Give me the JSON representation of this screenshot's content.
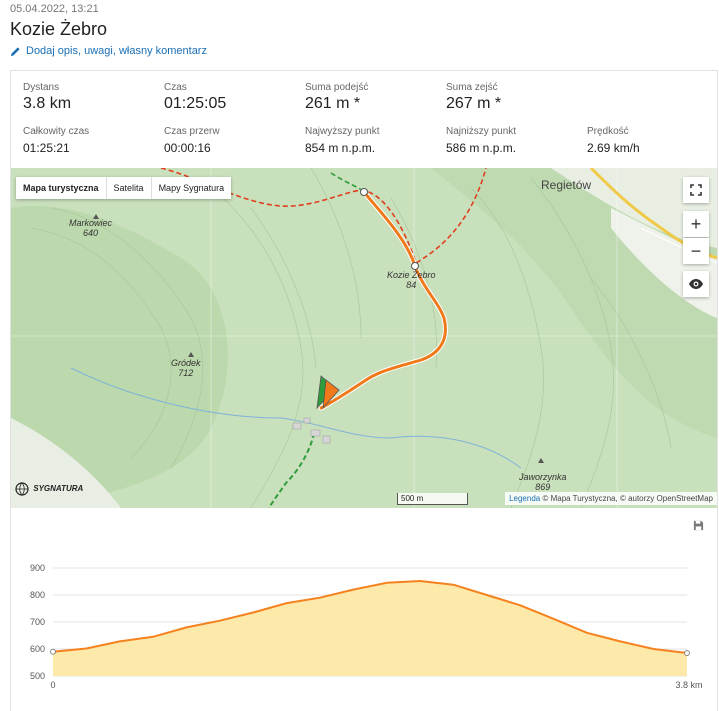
{
  "header": {
    "datetime": "05.04.2022, 13:21",
    "title": "Kozie Żebro",
    "edit_label": "Dodaj opis, uwagi, własny komentarz"
  },
  "stats": {
    "dystans": {
      "label": "Dystans",
      "value": "3.8 km"
    },
    "czas": {
      "label": "Czas",
      "value": "01:25:05"
    },
    "podejsc": {
      "label": "Suma podejść",
      "value": "261 m *"
    },
    "zejsc": {
      "label": "Suma zejść",
      "value": "267 m *"
    },
    "calkowity": {
      "label": "Całkowity czas",
      "value": "01:25:21"
    },
    "przerw": {
      "label": "Czas przerw",
      "value": "00:00:16"
    },
    "najwyzszy": {
      "label": "Najwyższy punkt",
      "value": "854 m n.p.m."
    },
    "najnizszy": {
      "label": "Najniższy punkt",
      "value": "586 m n.p.m."
    },
    "predkosc": {
      "label": "Prędkość",
      "value": "2.69 km/h"
    }
  },
  "map": {
    "tabs": [
      "Mapa turystyczna",
      "Satelita",
      "Mapy Sygnatura"
    ],
    "active_tab": "Mapa turystyczna",
    "labels": {
      "markowiec": "Markowiec",
      "markowiec_h": "640",
      "grodek": "Gródek",
      "grodek_h": "712",
      "kozie": "Kozie Żebro",
      "kozie_h": "84",
      "jaworzynka": "Jaworzynka",
      "jaworzynka_h": "869",
      "regietow": "Regietów"
    },
    "scale_label": "500 m",
    "legend_link": "Legenda",
    "attribution": "© Mapa Turystyczna, © autorzy OpenStreetMap",
    "logo": "SYGNATURA",
    "icons": {
      "fullscreen": "fullscreen-icon",
      "zoom_in": "plus-icon",
      "zoom_out": "minus-icon",
      "eye": "eye-icon",
      "save": "save-icon"
    }
  },
  "chart_data": {
    "type": "area",
    "x_tick_labels": [
      "0",
      "3.8 km"
    ],
    "xlim": [
      0,
      3.8
    ],
    "ylim": [
      500,
      900
    ],
    "y_ticks": [
      500,
      600,
      700,
      800,
      900
    ],
    "x": [
      0,
      0.2,
      0.4,
      0.6,
      0.8,
      1.0,
      1.2,
      1.4,
      1.6,
      1.8,
      2.0,
      2.2,
      2.4,
      2.6,
      2.8,
      3.0,
      3.2,
      3.4,
      3.6,
      3.8
    ],
    "y": [
      590,
      602,
      628,
      645,
      680,
      705,
      735,
      770,
      790,
      820,
      845,
      852,
      838,
      800,
      762,
      712,
      660,
      628,
      600,
      585
    ],
    "fill_color": "#fde9a9",
    "line_color": "#f5821f",
    "grid": true
  }
}
